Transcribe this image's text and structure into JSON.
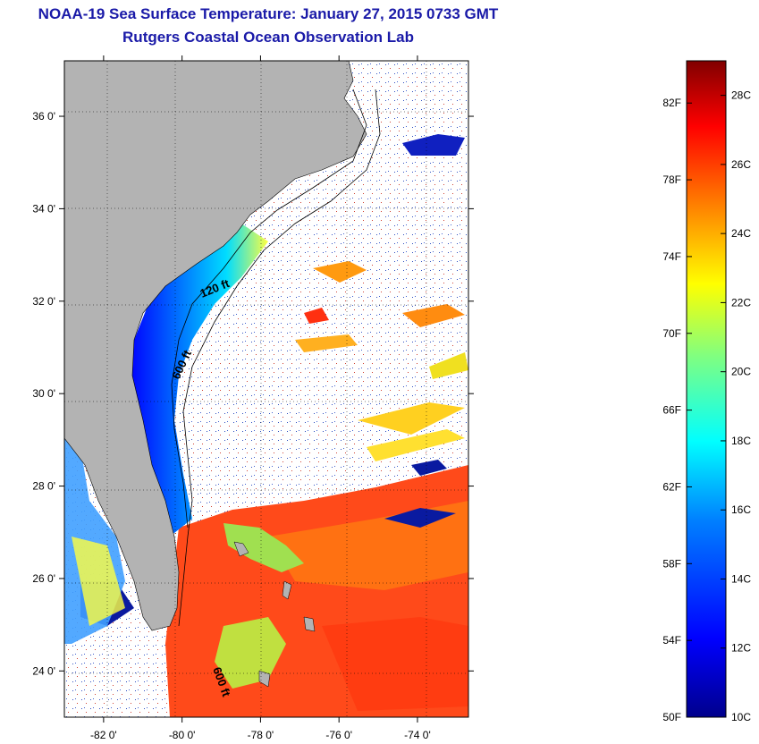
{
  "title": "NOAA-19 Sea Surface Temperature:  January 27, 2015 0733 GMT",
  "subtitle": "Rutgers Coastal Ocean Observation Lab",
  "map": {
    "lat_labels": [
      "36 0'",
      "34 0'",
      "32 0'",
      "30 0'",
      "28 0'",
      "26 0'",
      "24 0'"
    ],
    "lon_labels": [
      "-82 0'",
      "-80 0'",
      "-78 0'",
      "-76 0'",
      "-74 0'"
    ],
    "lat_values": [
      36,
      34,
      32,
      30,
      28,
      26,
      24
    ],
    "lon_values": [
      -82,
      -80,
      -78,
      -76,
      -74
    ],
    "lat_range": [
      23,
      37.2
    ],
    "lon_range": [
      -83,
      -72.7
    ],
    "contour_labels": [
      "120 ft",
      "600 ft",
      "600 ft"
    ],
    "land_color": "#b3b3b3",
    "cloud_color": "#ffffff"
  },
  "colorbar": {
    "fahrenheit_labels": [
      "82F",
      "78F",
      "74F",
      "70F",
      "66F",
      "62F",
      "58F",
      "54F",
      "50F"
    ],
    "fahrenheit_values": [
      82,
      78,
      74,
      70,
      66,
      62,
      58,
      54,
      50
    ],
    "celsius_labels": [
      "28C",
      "26C",
      "24C",
      "22C",
      "20C",
      "18C",
      "16C",
      "14C",
      "12C",
      "10C"
    ],
    "celsius_values": [
      28,
      26,
      24,
      22,
      20,
      18,
      16,
      14,
      12,
      10
    ],
    "range_c": [
      10,
      29
    ],
    "colors": [
      "#00008c",
      "#0000ff",
      "#0080ff",
      "#00ffff",
      "#80ff80",
      "#ffff00",
      "#ff8000",
      "#ff0000",
      "#800000"
    ]
  }
}
